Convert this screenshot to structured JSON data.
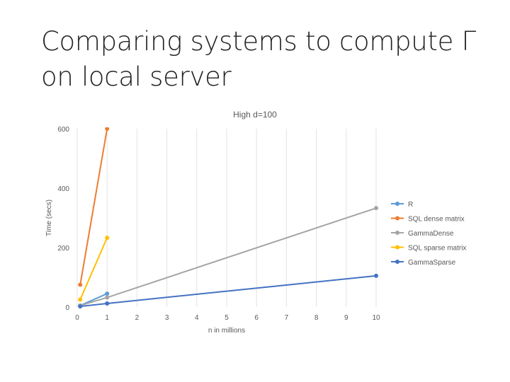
{
  "slide": {
    "title_line1": "Comparing systems to compute Γ",
    "title_line2": "on local server"
  },
  "chart_data": {
    "type": "line",
    "title": "High d=100",
    "xlabel": "n in millions",
    "ylabel": "Time (secs)",
    "xlim": [
      0,
      10
    ],
    "ylim": [
      0,
      600
    ],
    "x_ticks": [
      0,
      1,
      2,
      3,
      4,
      5,
      6,
      7,
      8,
      9,
      10
    ],
    "y_ticks": [
      0,
      200,
      400,
      600
    ],
    "grid": "vertical",
    "legend_position": "right",
    "series": [
      {
        "name": "R",
        "color": "#5B9BD5",
        "points": [
          [
            0.1,
            5
          ],
          [
            1,
            45
          ]
        ]
      },
      {
        "name": "SQL dense matrix",
        "color": "#ED7D31",
        "points": [
          [
            0.1,
            75
          ],
          [
            1,
            600
          ]
        ]
      },
      {
        "name": "GammaDense",
        "color": "#A5A5A5",
        "points": [
          [
            0.1,
            5
          ],
          [
            1,
            32
          ],
          [
            10,
            333
          ]
        ]
      },
      {
        "name": "SQL sparse matrix",
        "color": "#FFC000",
        "points": [
          [
            0.1,
            25
          ],
          [
            1,
            233
          ]
        ]
      },
      {
        "name": "GammaSparse",
        "color": "#4472C4",
        "points": [
          [
            0.1,
            2
          ],
          [
            1,
            12
          ],
          [
            10,
            105
          ]
        ]
      }
    ]
  }
}
